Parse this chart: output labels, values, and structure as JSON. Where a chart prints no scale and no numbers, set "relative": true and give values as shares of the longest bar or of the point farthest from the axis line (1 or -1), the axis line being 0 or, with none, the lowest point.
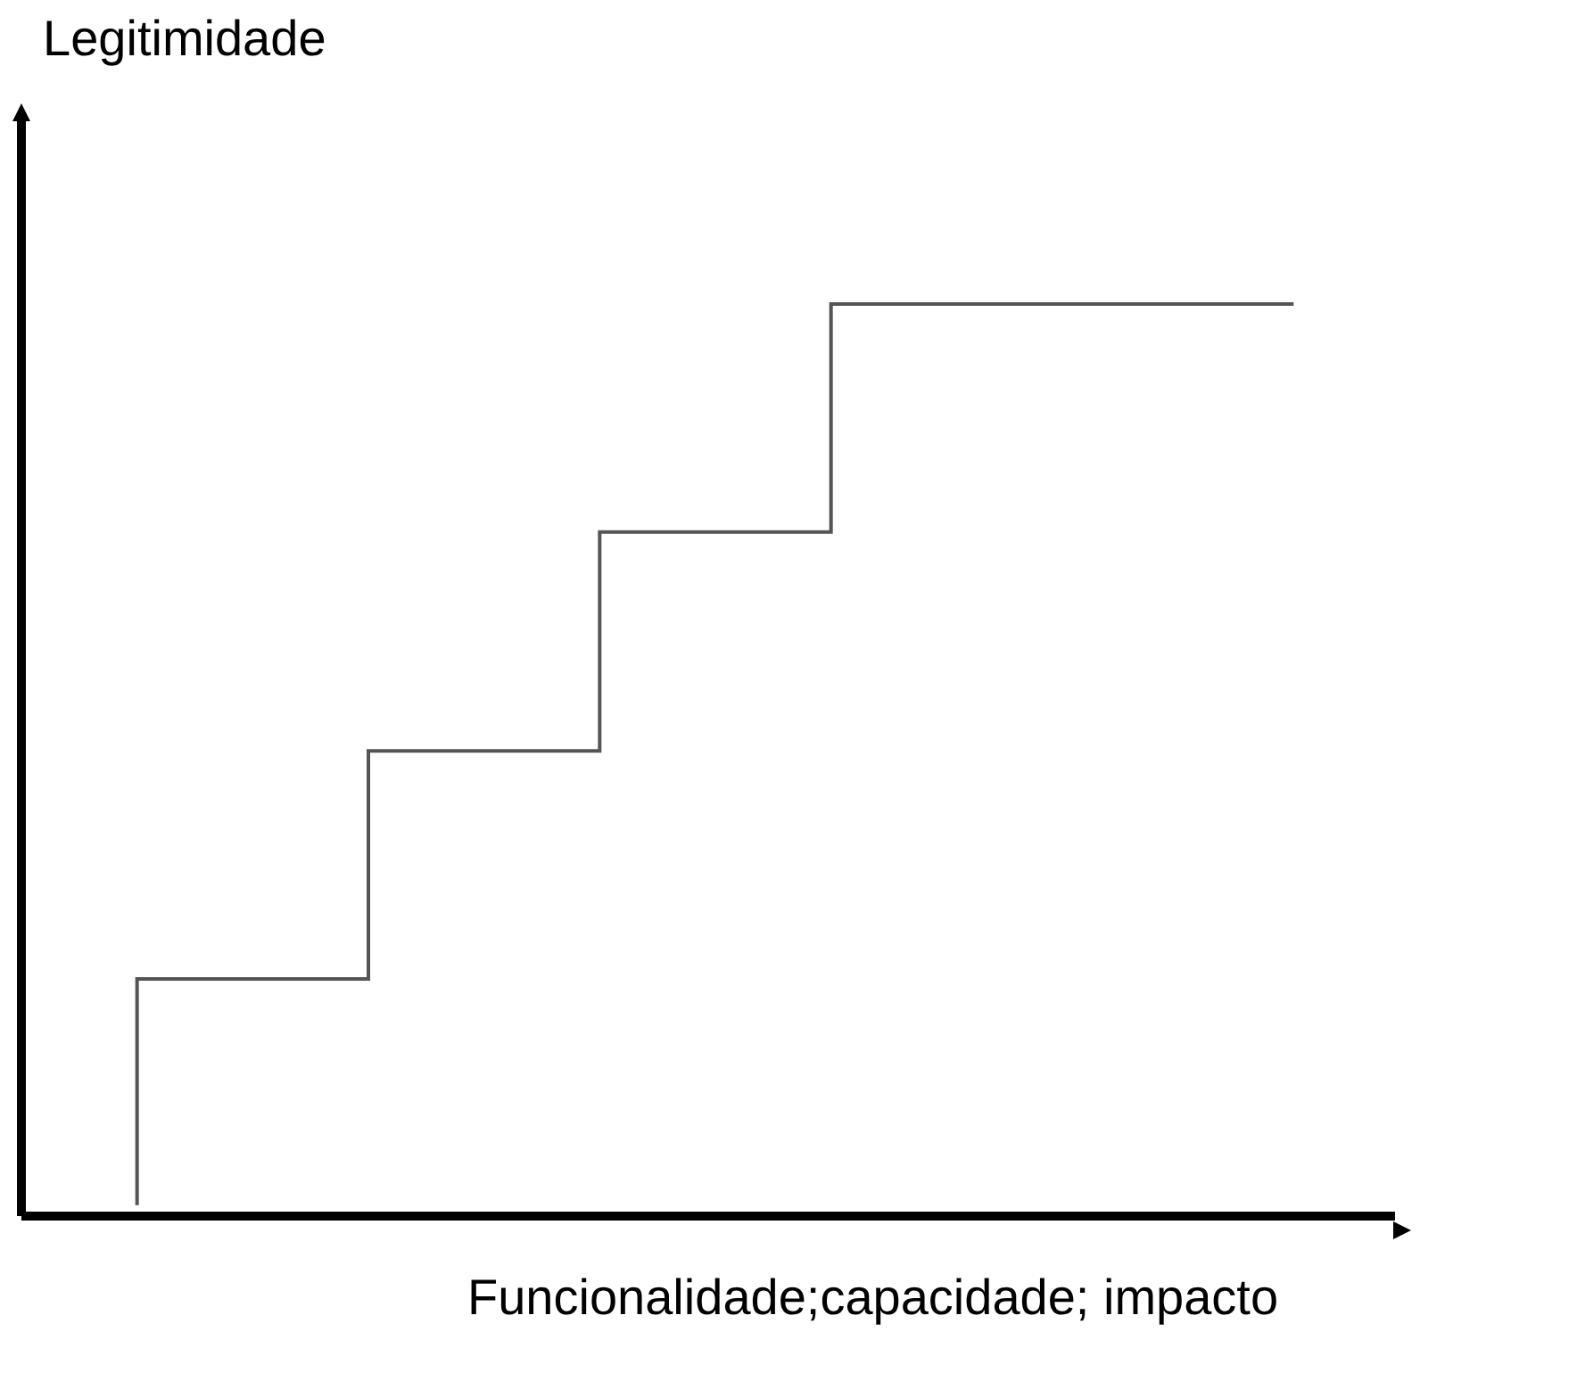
{
  "chart_data": {
    "type": "step",
    "xlabel": "Funcionalidade;capacidade; impacto",
    "ylabel": "Legitimidade",
    "relative": true,
    "categories": [
      null,
      null,
      null,
      null,
      null,
      null
    ],
    "series": [
      {
        "color": "#555555",
        "values": [
          0.012,
          0.26,
          0.51,
          0.75,
          1,
          1
        ]
      }
    ]
  }
}
